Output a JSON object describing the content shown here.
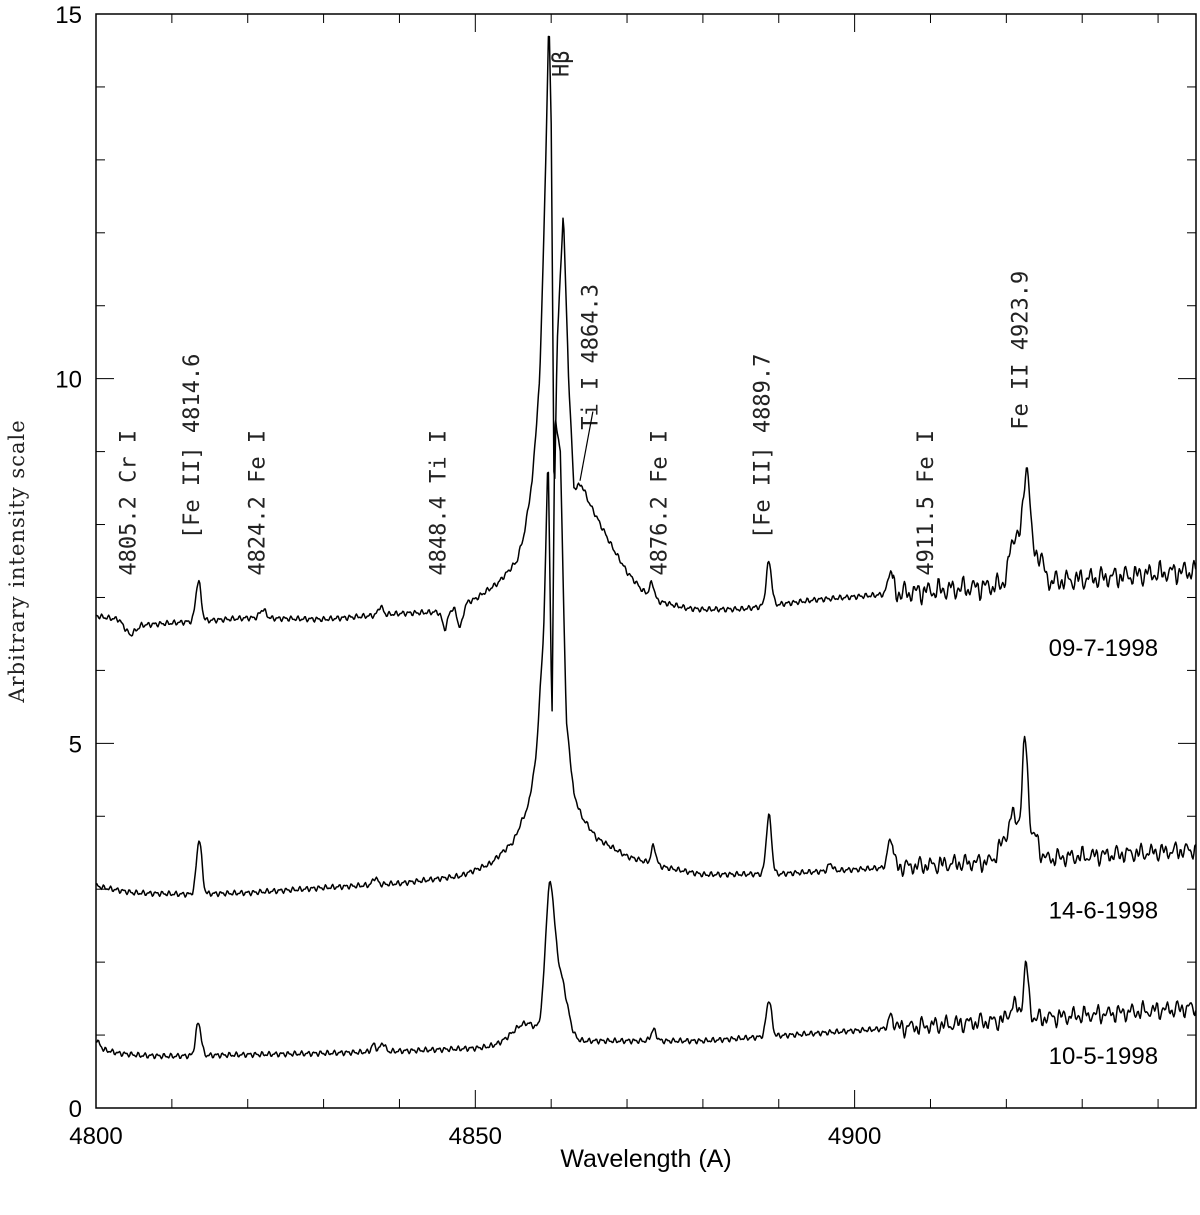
{
  "chart_data": {
    "type": "line",
    "xlabel": "Wavelength (A)",
    "ylabel": "Arbitrary intensity scale",
    "xlim": [
      4800,
      4945
    ],
    "ylim": [
      0,
      15
    ],
    "x_ticks": [
      4800,
      4850,
      4900
    ],
    "y_ticks": [
      0,
      5,
      10,
      15
    ],
    "grid": false,
    "series": [
      {
        "name": "10-5-1998",
        "baseline": 0.7,
        "noise_amp": 0.04,
        "wiggle_start": 4905,
        "wiggle_amp": 0.12,
        "tilt": 0.007,
        "tilt_start": 4880,
        "label_y": 0.6,
        "points": [
          [
            4800.0,
            0.94
          ],
          [
            4801.0,
            0.8
          ],
          [
            4803.0,
            0.75
          ],
          [
            4806.0,
            0.72
          ],
          [
            4810.0,
            0.71
          ],
          [
            4814.0,
            0.72
          ],
          [
            4830.0,
            0.75
          ],
          [
            4840.0,
            0.78
          ],
          [
            4850.0,
            0.82
          ],
          [
            4855.0,
            0.87
          ],
          [
            4857.0,
            0.92
          ]
        ],
        "peaks": [
          {
            "x": 4813.5,
            "h": 0.45,
            "w": 0.35
          },
          {
            "x": 4836.6,
            "h": 0.1,
            "w": 0.3
          },
          {
            "x": 4837.8,
            "h": 0.12,
            "w": 0.3
          },
          {
            "x": 4859.8,
            "h": 1.85,
            "w": 0.6
          },
          {
            "x": 4861.2,
            "h": 0.85,
            "w": 0.9
          },
          {
            "x": 4856.5,
            "h": 0.25,
            "w": 1.8
          },
          {
            "x": 4873.5,
            "h": 0.15,
            "w": 0.35
          },
          {
            "x": 4888.7,
            "h": 0.5,
            "w": 0.35
          },
          {
            "x": 4904.8,
            "h": 0.2,
            "w": 0.3
          },
          {
            "x": 4922.6,
            "h": 0.7,
            "w": 0.35
          },
          {
            "x": 4921.0,
            "h": 0.2,
            "w": 0.6
          }
        ]
      },
      {
        "name": "14-6-1998",
        "baseline": 3.0,
        "noise_amp": 0.04,
        "wiggle_start": 4905,
        "wiggle_amp": 0.12,
        "tilt": 0.006,
        "tilt_start": 4880,
        "label_y": 2.6,
        "points": [
          [
            4800.0,
            3.05
          ],
          [
            4801.0,
            3.02
          ],
          [
            4805.0,
            2.95
          ],
          [
            4812.0,
            2.93
          ],
          [
            4820.0,
            2.95
          ],
          [
            4830.0,
            3.02
          ],
          [
            4840.0,
            3.08
          ],
          [
            4848.0,
            3.18
          ],
          [
            4852.0,
            3.35
          ],
          [
            4855.0,
            3.65
          ],
          [
            4857.0,
            4.15
          ],
          [
            4858.0,
            4.8
          ],
          [
            4859.0,
            6.5
          ],
          [
            4859.6,
            9.0
          ],
          [
            4860.1,
            5.25
          ],
          [
            4860.5,
            9.5
          ],
          [
            4861.2,
            9.0
          ],
          [
            4862.0,
            5.3
          ],
          [
            4863.0,
            4.3
          ],
          [
            4864.0,
            4.0
          ],
          [
            4866.0,
            3.7
          ],
          [
            4870.0,
            3.45
          ],
          [
            4875.0,
            3.3
          ],
          [
            4880.0,
            3.2
          ],
          [
            4890.0,
            3.15
          ]
        ],
        "peaks": [
          {
            "x": 4813.6,
            "h": 0.75,
            "w": 0.35
          },
          {
            "x": 4836.8,
            "h": 0.1,
            "w": 0.3
          },
          {
            "x": 4873.5,
            "h": 0.25,
            "w": 0.3
          },
          {
            "x": 4888.7,
            "h": 0.8,
            "w": 0.35
          },
          {
            "x": 4896.8,
            "h": 0.1,
            "w": 0.3
          },
          {
            "x": 4904.7,
            "h": 0.4,
            "w": 0.35
          },
          {
            "x": 4922.5,
            "h": 1.55,
            "w": 0.4
          },
          {
            "x": 4921.0,
            "h": 0.6,
            "w": 0.7
          },
          {
            "x": 4919.5,
            "h": 0.2,
            "w": 0.7
          },
          {
            "x": 4923.8,
            "h": 0.3,
            "w": 0.5
          }
        ]
      },
      {
        "name": "09-7-1998",
        "baseline": 6.6,
        "noise_amp": 0.04,
        "wiggle_start": 4905,
        "wiggle_amp": 0.15,
        "tilt": 0.008,
        "tilt_start": 4880,
        "label_y": 6.2,
        "points": [
          [
            4800.0,
            6.75
          ],
          [
            4801.5,
            6.72
          ],
          [
            4803.0,
            6.7
          ],
          [
            4804.5,
            6.48
          ],
          [
            4806.0,
            6.62
          ],
          [
            4810.0,
            6.65
          ],
          [
            4820.0,
            6.72
          ],
          [
            4830.0,
            6.7
          ],
          [
            4840.0,
            6.78
          ],
          [
            4845.0,
            6.8
          ],
          [
            4847.0,
            6.85
          ],
          [
            4850.0,
            6.98
          ],
          [
            4853.0,
            7.2
          ],
          [
            4855.5,
            7.5
          ],
          [
            4856.5,
            7.9
          ],
          [
            4857.5,
            8.6
          ],
          [
            4858.5,
            10.0
          ],
          [
            4859.3,
            13.0
          ],
          [
            4859.7,
            15.0
          ],
          [
            4860.0,
            13.5
          ],
          [
            4860.4,
            8.2
          ],
          [
            4860.8,
            10.5
          ],
          [
            4861.6,
            12.3
          ],
          [
            4862.3,
            10.0
          ],
          [
            4863.0,
            8.5
          ],
          [
            4864.0,
            8.55
          ],
          [
            4865.0,
            8.3
          ],
          [
            4866.5,
            8.0
          ],
          [
            4868.0,
            7.7
          ],
          [
            4870.0,
            7.35
          ],
          [
            4872.0,
            7.1
          ],
          [
            4874.0,
            6.95
          ],
          [
            4878.0,
            6.85
          ],
          [
            4885.0,
            6.8
          ],
          [
            4895.0,
            6.85
          ]
        ],
        "peaks": [
          {
            "x": 4813.5,
            "h": 0.55,
            "w": 0.35
          },
          {
            "x": 4822.0,
            "h": 0.12,
            "w": 0.4
          },
          {
            "x": 4837.5,
            "h": 0.12,
            "w": 0.3
          },
          {
            "x": 4846.0,
            "h": -0.25,
            "w": 0.35
          },
          {
            "x": 4848.0,
            "h": -0.3,
            "w": 0.35
          },
          {
            "x": 4873.3,
            "h": 0.2,
            "w": 0.3
          },
          {
            "x": 4888.7,
            "h": 0.6,
            "w": 0.35
          },
          {
            "x": 4904.7,
            "h": 0.3,
            "w": 0.35
          },
          {
            "x": 4922.7,
            "h": 1.55,
            "w": 0.45
          },
          {
            "x": 4921.2,
            "h": 0.7,
            "w": 0.7
          },
          {
            "x": 4924.2,
            "h": 0.4,
            "w": 0.6
          }
        ]
      }
    ],
    "annotations": [
      {
        "text": "4805.2 Cr I",
        "x": 4805.2,
        "y_base": 7.3
      },
      {
        "text": "[Fe II] 4814.6",
        "x": 4813.6,
        "y_base": 7.8
      },
      {
        "text": "4824.2 Fe I",
        "x": 4822.2,
        "y_base": 7.3
      },
      {
        "text": "4848.4 Ti I",
        "x": 4846.1,
        "y_base": 7.3
      },
      {
        "text": "Ti I 4864.3",
        "x": 4866.1,
        "y_base": 9.3
      },
      {
        "text": "4876.2 Fe I",
        "x": 4875.2,
        "y_base": 7.3
      },
      {
        "text": "[Fe II] 4889.7",
        "x": 4888.8,
        "y_base": 7.8
      },
      {
        "text": "4911.5 Fe I",
        "x": 4910.3,
        "y_base": 7.3
      },
      {
        "text": "Fe II 4923.9",
        "x": 4922.8,
        "y_base": 9.3
      }
    ],
    "hbeta_label": {
      "text": "Hβ",
      "x": 4862.3,
      "y": 14.5
    },
    "ti_pointer": {
      "from": [
        4865.5,
        9.55
      ],
      "to": [
        4863.8,
        8.6
      ]
    }
  }
}
